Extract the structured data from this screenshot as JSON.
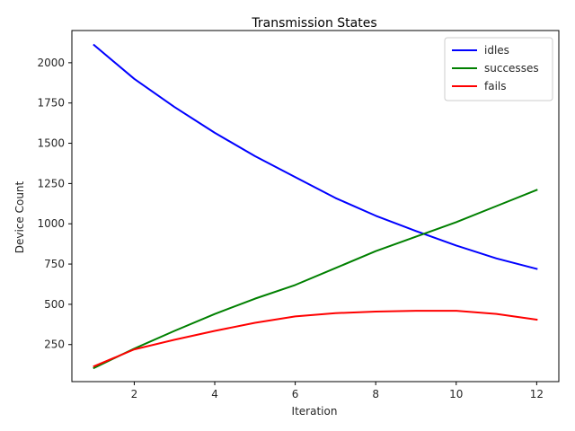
{
  "chart_data": {
    "type": "line",
    "title": "Transmission States",
    "xlabel": "Iteration",
    "ylabel": "Device Count",
    "xlim": [
      0.45,
      12.55
    ],
    "ylim": [
      20,
      2200
    ],
    "xticks": [
      2,
      4,
      6,
      8,
      10,
      12
    ],
    "yticks": [
      250,
      500,
      750,
      1000,
      1250,
      1500,
      1750,
      2000
    ],
    "grid": false,
    "legend_position": "top-right",
    "x": [
      1,
      2,
      3,
      4,
      5,
      6,
      7,
      8,
      9,
      10,
      11,
      12
    ],
    "series": [
      {
        "name": "idles",
        "color": "#0000ff",
        "values": [
          2110,
          1900,
          1725,
          1565,
          1420,
          1290,
          1160,
          1050,
          955,
          865,
          785,
          720
        ]
      },
      {
        "name": "successes",
        "color": "#008000",
        "values": [
          105,
          225,
          335,
          440,
          535,
          620,
          725,
          830,
          920,
          1010,
          1110,
          1210
        ]
      },
      {
        "name": "fails",
        "color": "#ff0000",
        "values": [
          115,
          220,
          280,
          335,
          385,
          425,
          445,
          455,
          460,
          460,
          440,
          405
        ]
      }
    ]
  }
}
